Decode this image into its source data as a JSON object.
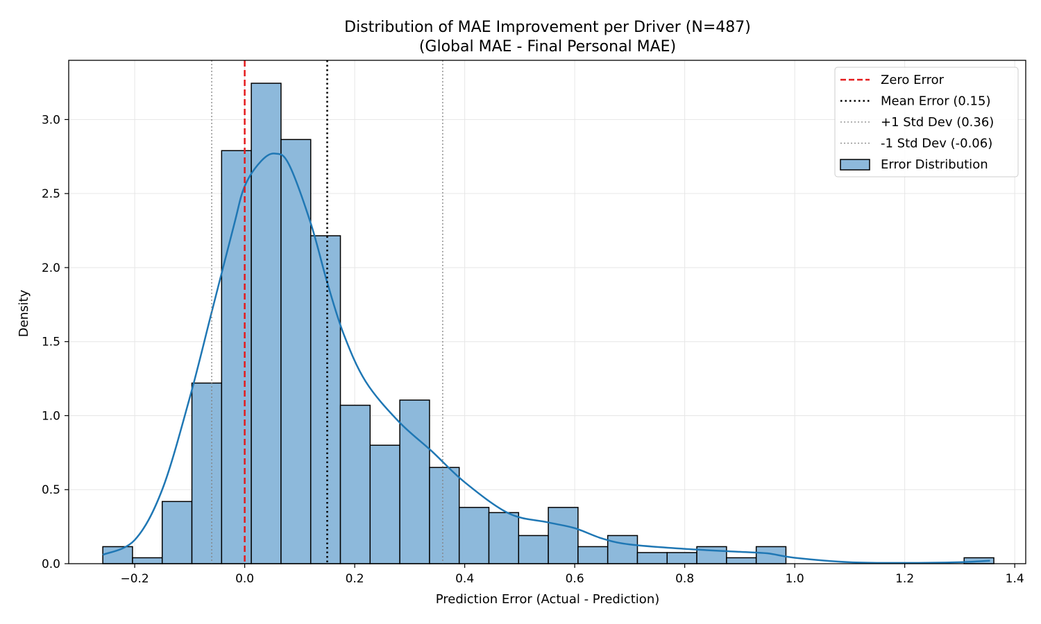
{
  "chart_data": {
    "type": "bar",
    "subtype": "histogram_with_kde",
    "title": "Distribution of MAE Improvement per Driver (N=487)",
    "subtitle": "(Global MAE - Final Personal MAE)",
    "xlabel": "Prediction Error (Actual - Prediction)",
    "ylabel": "Density",
    "xlim": [
      -0.32,
      1.42
    ],
    "ylim": [
      0,
      3.4
    ],
    "xticks": [
      -0.2,
      0.0,
      0.2,
      0.4,
      0.6,
      0.8,
      1.0,
      1.2,
      1.4
    ],
    "xtick_labels": [
      "−0.2",
      "0.0",
      "0.2",
      "0.4",
      "0.6",
      "0.8",
      "1.0",
      "1.2",
      "1.4"
    ],
    "yticks": [
      0.0,
      0.5,
      1.0,
      1.5,
      2.0,
      2.5,
      3.0
    ],
    "ytick_labels": [
      "0.0",
      "0.5",
      "1.0",
      "1.5",
      "2.0",
      "2.5",
      "3.0"
    ],
    "grid": true,
    "legend_position": "top-right",
    "bin_edges": [
      -0.258,
      -0.204,
      -0.15,
      -0.096,
      -0.042,
      0.012,
      0.066,
      0.12,
      0.174,
      0.228,
      0.282,
      0.336,
      0.39,
      0.444,
      0.498,
      0.552,
      0.606,
      0.66,
      0.714,
      0.768,
      0.822,
      0.876,
      0.93,
      0.984,
      1.038,
      1.092,
      1.146,
      1.2,
      1.254,
      1.308,
      1.362
    ],
    "densities": [
      0.115,
      0.04,
      0.42,
      1.22,
      2.79,
      3.245,
      2.865,
      2.215,
      1.07,
      0.8,
      1.105,
      0.65,
      0.38,
      0.345,
      0.19,
      0.38,
      0.115,
      0.19,
      0.075,
      0.075,
      0.115,
      0.04,
      0.115,
      0,
      0,
      0,
      0,
      0,
      0,
      0.04
    ],
    "kde": {
      "x": [
        -0.258,
        -0.2,
        -0.15,
        -0.1,
        -0.06,
        -0.02,
        0.0,
        0.03,
        0.055,
        0.08,
        0.12,
        0.15,
        0.18,
        0.22,
        0.28,
        0.34,
        0.4,
        0.48,
        0.55,
        0.6,
        0.65,
        0.7,
        0.8,
        0.9,
        0.95,
        1.0,
        1.1,
        1.2,
        1.3,
        1.355
      ],
      "y": [
        0.06,
        0.16,
        0.5,
        1.12,
        1.7,
        2.28,
        2.55,
        2.72,
        2.77,
        2.7,
        2.3,
        1.9,
        1.55,
        1.23,
        0.96,
        0.76,
        0.55,
        0.34,
        0.28,
        0.24,
        0.17,
        0.13,
        0.1,
        0.08,
        0.07,
        0.04,
        0.01,
        0.005,
        0.01,
        0.02
      ]
    },
    "reference_lines": [
      {
        "name": "Zero Error",
        "x": 0.0
      },
      {
        "name": "Mean Error (0.15)",
        "x": 0.15
      },
      {
        "name": "+1 Std Dev (0.36)",
        "x": 0.36
      },
      {
        "name": "-1 Std Dev (-0.06)",
        "x": -0.06
      }
    ],
    "legend": [
      {
        "label": "Zero Error",
        "style": "dashed",
        "color": "#e41a1c"
      },
      {
        "label": "Mean Error (0.15)",
        "style": "dotted",
        "color": "#000000"
      },
      {
        "label": "+1 Std Dev (0.36)",
        "style": "dotted-thin",
        "color": "#808080"
      },
      {
        "label": "-1 Std Dev (-0.06)",
        "style": "dotted-thin",
        "color": "#808080"
      },
      {
        "label": "Error Distribution",
        "style": "patch",
        "color": "#8db9db"
      }
    ],
    "colors": {
      "bar_fill": "#8db9db",
      "bar_edge": "#000000",
      "kde_line": "#1f77b4",
      "zero_line": "#e41a1c",
      "mean_line": "#000000",
      "std_line": "#808080",
      "grid": "#e6e6e6"
    }
  }
}
